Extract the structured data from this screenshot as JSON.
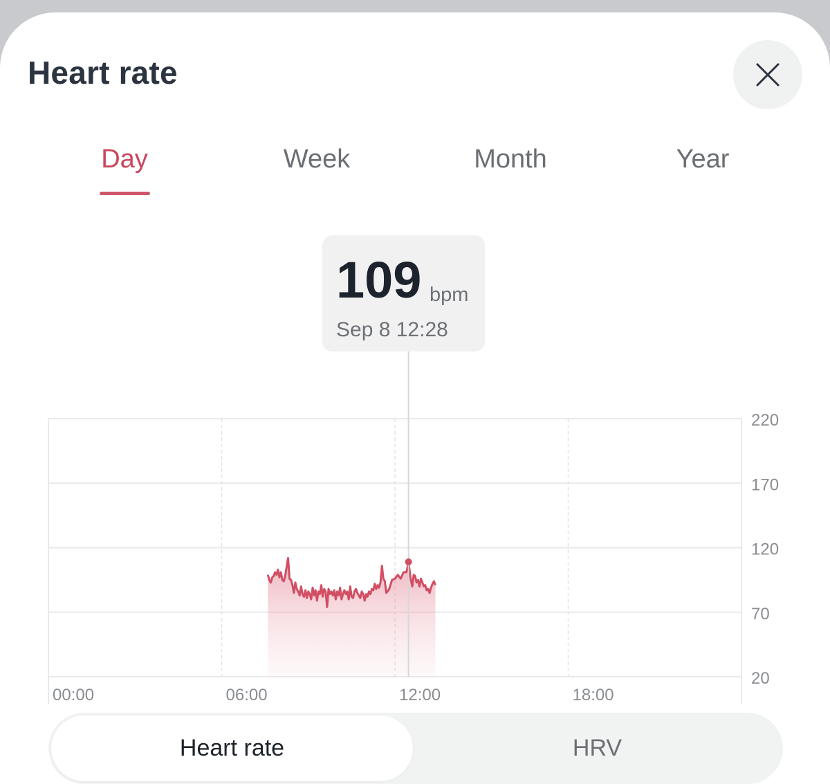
{
  "header": {
    "title": "Heart rate",
    "close_icon": "close-icon"
  },
  "tabs": [
    {
      "label": "Day",
      "active": true
    },
    {
      "label": "Week",
      "active": false
    },
    {
      "label": "Month",
      "active": false
    },
    {
      "label": "Year",
      "active": false
    }
  ],
  "tooltip": {
    "value": "109",
    "unit": "bpm",
    "date": "Sep 8 12:28"
  },
  "colors": {
    "accent": "#c8485e",
    "line": "#d24e63"
  },
  "chart_data": {
    "type": "area",
    "title": "",
    "xlabel": "",
    "ylabel": "",
    "x_ticks": [
      "00:00",
      "06:00",
      "12:00",
      "18:00"
    ],
    "y_ticks": [
      220,
      170,
      120,
      70,
      20
    ],
    "xlim_hours": [
      0,
      24
    ],
    "ylim": [
      20,
      220
    ],
    "grid": true,
    "selected": {
      "time": 12.47,
      "value": 109
    },
    "series": [
      {
        "points": [
          [
            7.6,
            99
          ],
          [
            7.65,
            95
          ],
          [
            7.7,
            93
          ],
          [
            7.75,
            97
          ],
          [
            7.8,
            98
          ],
          [
            7.85,
            101
          ],
          [
            7.9,
            99
          ],
          [
            7.95,
            103
          ],
          [
            8.0,
            97
          ],
          [
            8.05,
            101
          ],
          [
            8.1,
            95
          ],
          [
            8.15,
            94
          ],
          [
            8.2,
            98
          ],
          [
            8.3,
            112
          ],
          [
            8.35,
            96
          ],
          [
            8.4,
            95
          ],
          [
            8.45,
            91
          ],
          [
            8.5,
            85
          ],
          [
            8.55,
            93
          ],
          [
            8.6,
            88
          ],
          [
            8.65,
            86
          ],
          [
            8.7,
            83
          ],
          [
            8.75,
            90
          ],
          [
            8.8,
            84
          ],
          [
            8.85,
            82
          ],
          [
            8.9,
            87
          ],
          [
            8.95,
            81
          ],
          [
            9.0,
            86
          ],
          [
            9.05,
            84
          ],
          [
            9.1,
            80
          ],
          [
            9.15,
            89
          ],
          [
            9.2,
            83
          ],
          [
            9.25,
            87
          ],
          [
            9.3,
            79
          ],
          [
            9.35,
            86
          ],
          [
            9.4,
            84
          ],
          [
            9.45,
            91
          ],
          [
            9.5,
            82
          ],
          [
            9.55,
            88
          ],
          [
            9.6,
            86
          ],
          [
            9.65,
            74
          ],
          [
            9.7,
            88
          ],
          [
            9.75,
            84
          ],
          [
            9.8,
            86
          ],
          [
            9.85,
            83
          ],
          [
            9.9,
            87
          ],
          [
            9.95,
            80
          ],
          [
            10.0,
            86
          ],
          [
            10.05,
            83
          ],
          [
            10.1,
            89
          ],
          [
            10.15,
            80
          ],
          [
            10.2,
            84
          ],
          [
            10.25,
            87
          ],
          [
            10.3,
            84
          ],
          [
            10.35,
            86
          ],
          [
            10.4,
            80
          ],
          [
            10.45,
            90
          ],
          [
            10.5,
            82
          ],
          [
            10.55,
            81
          ],
          [
            10.6,
            86
          ],
          [
            10.65,
            88
          ],
          [
            10.7,
            85
          ],
          [
            10.75,
            83
          ],
          [
            10.8,
            81
          ],
          [
            10.85,
            86
          ],
          [
            10.9,
            84
          ],
          [
            10.95,
            79
          ],
          [
            11.0,
            84
          ],
          [
            11.05,
            82
          ],
          [
            11.1,
            86
          ],
          [
            11.15,
            84
          ],
          [
            11.2,
            88
          ],
          [
            11.25,
            87
          ],
          [
            11.3,
            92
          ],
          [
            11.35,
            88
          ],
          [
            11.4,
            91
          ],
          [
            11.45,
            89
          ],
          [
            11.5,
            93
          ],
          [
            11.55,
            106
          ],
          [
            11.6,
            96
          ],
          [
            11.65,
            94
          ],
          [
            11.7,
            85
          ],
          [
            11.8,
            88
          ],
          [
            11.9,
            95
          ],
          [
            12.0,
            96
          ],
          [
            12.1,
            99
          ],
          [
            12.2,
            96
          ],
          [
            12.3,
            101
          ],
          [
            12.4,
            101
          ],
          [
            12.47,
            109
          ],
          [
            12.55,
            95
          ],
          [
            12.6,
            90
          ],
          [
            12.65,
            99
          ],
          [
            12.7,
            98
          ],
          [
            12.75,
            93
          ],
          [
            12.8,
            95
          ],
          [
            12.85,
            90
          ],
          [
            12.9,
            96
          ],
          [
            12.95,
            93
          ],
          [
            13.0,
            90
          ],
          [
            13.05,
            91
          ],
          [
            13.1,
            87
          ],
          [
            13.15,
            88
          ],
          [
            13.2,
            85
          ],
          [
            13.25,
            89
          ],
          [
            13.3,
            92
          ],
          [
            13.35,
            94
          ],
          [
            13.4,
            91
          ]
        ]
      }
    ]
  },
  "segment": {
    "options": [
      "Heart rate",
      "HRV"
    ],
    "selected": "Heart rate"
  }
}
